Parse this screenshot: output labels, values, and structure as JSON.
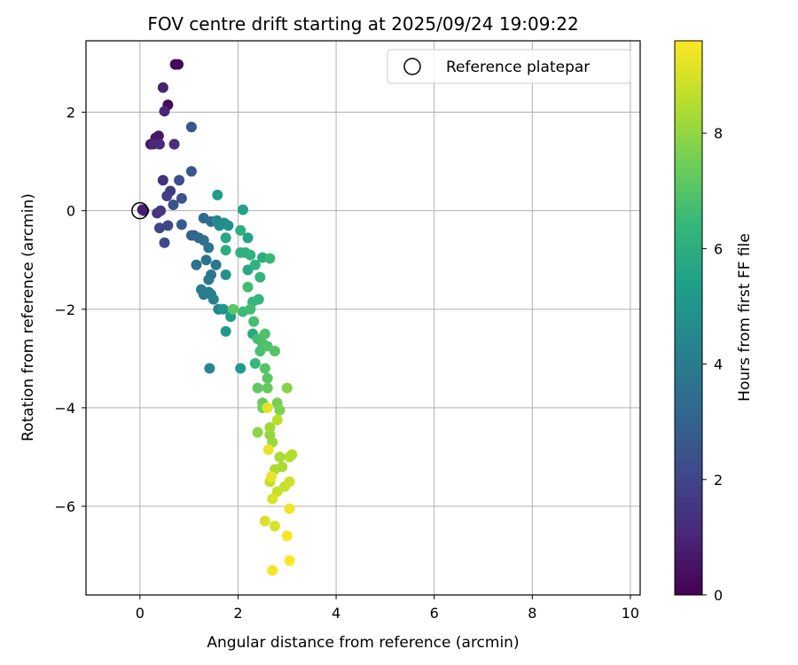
{
  "chart_data": {
    "type": "scatter",
    "title": "FOV centre drift starting at 2025/09/24 19:09:22",
    "xlabel": "Angular distance from reference (arcmin)",
    "ylabel": "Rotation from reference (arcmin)",
    "xlim": [
      -1.1,
      10.2
    ],
    "ylim": [
      -7.8,
      3.45
    ],
    "xticks": [
      0,
      2,
      4,
      6,
      8,
      10
    ],
    "xtick_labels": [
      "0",
      "2",
      "4",
      "6",
      "8",
      "10"
    ],
    "yticks": [
      2,
      0,
      -2,
      -4,
      -6
    ],
    "ytick_labels": [
      "2",
      "0",
      "−2",
      "−4",
      "−6"
    ],
    "grid": true,
    "legend": {
      "placement": "top-right",
      "label": "Reference platepar"
    },
    "reference_point": {
      "x": 0,
      "y": 0
    },
    "colorbar": {
      "label": "Hours from first FF file",
      "range": [
        0,
        9.6
      ],
      "ticks": [
        0,
        2,
        4,
        6,
        8
      ],
      "tick_labels": [
        "0",
        "2",
        "4",
        "6",
        "8"
      ],
      "colormap": "viridis",
      "colormap_stops": [
        "#440154",
        "#482878",
        "#3e4a89",
        "#31688e",
        "#26828e",
        "#1f9e89",
        "#35b779",
        "#6ece58",
        "#b5de2b",
        "#fde725"
      ]
    },
    "series": [
      {
        "name": "FOV centre drift",
        "points": [
          [
            0.72,
            2.97,
            0.1
          ],
          [
            0.78,
            2.97,
            0.2
          ],
          [
            0.57,
            2.15,
            0.3
          ],
          [
            0.22,
            1.35,
            0.4
          ],
          [
            0.32,
            1.48,
            0.5
          ],
          [
            0.38,
            1.52,
            0.6
          ],
          [
            0.05,
            0.02,
            0.7
          ],
          [
            0.08,
            0.0,
            0.8
          ],
          [
            0.47,
            2.5,
            0.9
          ],
          [
            0.5,
            2.02,
            1.0
          ],
          [
            0.27,
            1.35,
            1.1
          ],
          [
            0.4,
            1.35,
            1.2
          ],
          [
            0.7,
            1.35,
            1.3
          ],
          [
            0.47,
            0.62,
            1.4
          ],
          [
            0.35,
            -0.05,
            1.5
          ],
          [
            0.42,
            0.0,
            1.6
          ],
          [
            0.62,
            0.4,
            1.7
          ],
          [
            0.55,
            0.3,
            1.8
          ],
          [
            0.4,
            -0.35,
            2.0
          ],
          [
            0.57,
            -0.3,
            2.1
          ],
          [
            0.5,
            -0.65,
            2.2
          ],
          [
            0.8,
            0.62,
            2.3
          ],
          [
            0.85,
            0.25,
            2.4
          ],
          [
            0.68,
            0.12,
            2.5
          ],
          [
            1.05,
            1.7,
            2.6
          ],
          [
            1.05,
            0.8,
            2.7
          ],
          [
            0.85,
            -0.28,
            2.8
          ],
          [
            1.05,
            -0.5,
            3.0
          ],
          [
            1.1,
            -0.5,
            3.1
          ],
          [
            1.2,
            -0.55,
            3.2
          ],
          [
            1.3,
            -0.15,
            3.3
          ],
          [
            1.45,
            -0.22,
            3.4
          ],
          [
            1.3,
            -0.6,
            3.5
          ],
          [
            1.4,
            -0.75,
            3.6
          ],
          [
            1.15,
            -1.1,
            3.6
          ],
          [
            1.35,
            -1.0,
            3.7
          ],
          [
            1.55,
            -1.1,
            3.8
          ],
          [
            1.45,
            -1.3,
            3.9
          ],
          [
            1.4,
            -1.4,
            3.9
          ],
          [
            1.25,
            -1.6,
            4.0
          ],
          [
            1.3,
            -1.7,
            4.0
          ],
          [
            1.4,
            -1.65,
            4.1
          ],
          [
            1.45,
            -1.7,
            4.2
          ],
          [
            1.5,
            -1.8,
            4.3
          ],
          [
            1.6,
            -2.0,
            4.4
          ],
          [
            1.42,
            -3.2,
            4.4
          ],
          [
            1.57,
            -0.2,
            4.5
          ],
          [
            1.62,
            -0.3,
            4.6
          ],
          [
            1.72,
            -0.25,
            4.7
          ],
          [
            1.8,
            -0.3,
            4.8
          ],
          [
            1.75,
            -1.3,
            4.9
          ],
          [
            1.7,
            -2.0,
            5.0
          ],
          [
            1.75,
            -2.45,
            5.1
          ],
          [
            2.05,
            -3.2,
            5.2
          ],
          [
            1.58,
            0.32,
            5.3
          ],
          [
            1.85,
            -2.15,
            5.4
          ],
          [
            2.1,
            0.02,
            5.5
          ],
          [
            2.2,
            -0.55,
            5.6
          ],
          [
            1.75,
            -0.55,
            5.7
          ],
          [
            2.2,
            -1.2,
            5.8
          ],
          [
            2.5,
            -0.95,
            5.9
          ],
          [
            2.3,
            -2.5,
            5.9
          ],
          [
            1.75,
            -0.8,
            6.0
          ],
          [
            2.05,
            -0.4,
            6.0
          ],
          [
            2.05,
            -0.85,
            6.1
          ],
          [
            2.15,
            -0.85,
            6.1
          ],
          [
            2.25,
            -0.9,
            6.2
          ],
          [
            2.35,
            -1.1,
            6.2
          ],
          [
            2.45,
            -1.35,
            6.3
          ],
          [
            2.42,
            -1.8,
            6.3
          ],
          [
            2.3,
            -1.85,
            6.4
          ],
          [
            2.35,
            -3.1,
            6.4
          ],
          [
            2.65,
            -0.97,
            6.5
          ],
          [
            2.1,
            -2.05,
            6.5
          ],
          [
            2.2,
            -1.55,
            6.6
          ],
          [
            2.25,
            -2.0,
            6.6
          ],
          [
            2.32,
            -2.25,
            6.7
          ],
          [
            2.4,
            -2.6,
            6.7
          ],
          [
            2.45,
            -2.85,
            6.8
          ],
          [
            2.5,
            -2.7,
            6.8
          ],
          [
            2.55,
            -2.5,
            6.9
          ],
          [
            2.6,
            -2.75,
            6.9
          ],
          [
            2.75,
            -2.85,
            7.0
          ],
          [
            2.55,
            -3.2,
            7.0
          ],
          [
            2.6,
            -3.4,
            7.1
          ],
          [
            1.9,
            -2.0,
            7.1
          ],
          [
            2.4,
            -3.6,
            7.2
          ],
          [
            2.5,
            -3.9,
            7.3
          ],
          [
            2.6,
            -3.6,
            7.3
          ],
          [
            2.5,
            -4.0,
            7.5
          ],
          [
            2.8,
            -3.9,
            7.6
          ],
          [
            2.85,
            -4.05,
            7.7
          ],
          [
            3.0,
            -3.6,
            7.8
          ],
          [
            2.4,
            -4.5,
            7.9
          ],
          [
            2.65,
            -4.55,
            8.0
          ],
          [
            2.7,
            -4.7,
            8.1
          ],
          [
            2.65,
            -4.4,
            8.2
          ],
          [
            2.85,
            -5.0,
            8.3
          ],
          [
            2.75,
            -5.25,
            8.4
          ],
          [
            2.9,
            -5.2,
            8.4
          ],
          [
            3.05,
            -5.0,
            8.5
          ],
          [
            3.1,
            -4.95,
            8.5
          ],
          [
            2.8,
            -4.25,
            8.6
          ],
          [
            2.65,
            -5.5,
            8.7
          ],
          [
            2.8,
            -5.7,
            8.8
          ],
          [
            2.95,
            -5.6,
            8.8
          ],
          [
            3.05,
            -5.5,
            8.9
          ],
          [
            2.55,
            -6.3,
            9.0
          ],
          [
            2.75,
            -6.4,
            9.0
          ],
          [
            2.7,
            -5.85,
            9.1
          ],
          [
            2.6,
            -4.0,
            9.2
          ],
          [
            2.62,
            -4.85,
            9.3
          ],
          [
            2.68,
            -5.4,
            9.3
          ],
          [
            3.05,
            -6.05,
            9.4
          ],
          [
            2.7,
            -7.3,
            9.5
          ],
          [
            3.0,
            -6.6,
            9.5
          ],
          [
            3.05,
            -7.1,
            9.6
          ]
        ]
      }
    ]
  }
}
